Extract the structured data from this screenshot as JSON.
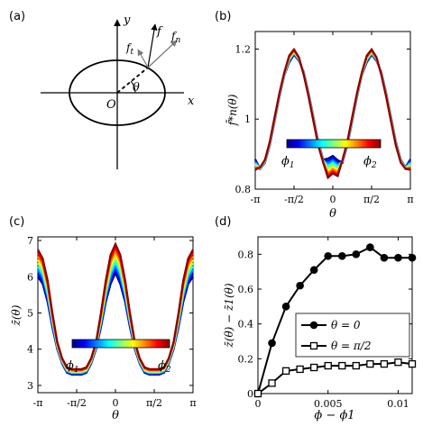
{
  "panel_labels": {
    "a": "(a)",
    "b": "(b)",
    "c": "(c)",
    "d": "(d)"
  },
  "diagram": {
    "y_label": "y",
    "x_label": "x",
    "origin_label": "O",
    "f_label": "f",
    "fn_label": "f",
    "fn_sub": "n",
    "ft_label": "f",
    "ft_sub": "t",
    "theta_label": "θ"
  },
  "colormap": {
    "stops": [
      "#00008b",
      "#0000ff",
      "#0080ff",
      "#00ffff",
      "#80ff80",
      "#ffff00",
      "#ff8000",
      "#ff0000",
      "#8b0000"
    ],
    "phi1": "ϕ",
    "phi1_sub": "1",
    "phi2": "ϕ",
    "phi2_sub": "2"
  },
  "chart_data": [
    {
      "id": "b",
      "type": "line",
      "xlabel": "θ",
      "ylabel": "f̄*n(θ)",
      "xlim": [
        -3.1416,
        3.1416
      ],
      "ylim": [
        0.8,
        1.25
      ],
      "xtick_labels": [
        "-π",
        "-π/2",
        "0",
        "π/2",
        "π"
      ],
      "xtick_values": [
        -3.1416,
        -1.5708,
        0,
        1.5708,
        3.1416
      ],
      "ytick_values": [
        0.8,
        1.0,
        1.2
      ],
      "ytick_labels": [
        "0.8",
        "1",
        "1.2"
      ],
      "x": [
        -3.1416,
        -2.9452,
        -2.7489,
        -2.5525,
        -2.3562,
        -2.1598,
        -1.9635,
        -1.7671,
        -1.5708,
        -1.3744,
        -1.1781,
        -0.9817,
        -0.7854,
        -0.589,
        -0.3927,
        -0.1963,
        0,
        0.1963,
        0.3927,
        0.589,
        0.7854,
        0.9817,
        1.1781,
        1.3744,
        1.5708,
        1.7671,
        1.9635,
        2.1598,
        2.3562,
        2.5525,
        2.7489,
        2.9452,
        3.1416
      ],
      "series_base": [
        0.87,
        0.86,
        0.88,
        0.93,
        1.0,
        1.07,
        1.13,
        1.17,
        1.19,
        1.17,
        1.13,
        1.07,
        1.0,
        0.93,
        0.88,
        0.86,
        0.87,
        0.86,
        0.88,
        0.93,
        1.0,
        1.07,
        1.13,
        1.17,
        1.19,
        1.17,
        1.13,
        1.07,
        1.0,
        0.93,
        0.88,
        0.86,
        0.87
      ],
      "series_count": 9
    },
    {
      "id": "c",
      "type": "line",
      "xlabel": "θ",
      "ylabel": "z̄(θ)",
      "xlim": [
        -3.1416,
        3.1416
      ],
      "ylim": [
        2.8,
        7.1
      ],
      "xtick_labels": [
        "-π",
        "-π/2",
        "0",
        "π/2",
        "π"
      ],
      "xtick_values": [
        -3.1416,
        -1.5708,
        0,
        1.5708,
        3.1416
      ],
      "ytick_values": [
        3,
        4,
        5,
        6,
        7
      ],
      "ytick_labels": [
        "3",
        "4",
        "5",
        "6",
        "7"
      ],
      "x": [
        -3.1416,
        -2.9452,
        -2.7489,
        -2.5525,
        -2.3562,
        -2.1598,
        -1.9635,
        -1.7671,
        -1.5708,
        -1.3744,
        -1.1781,
        -0.9817,
        -0.7854,
        -0.589,
        -0.3927,
        -0.1963,
        0,
        0.1963,
        0.3927,
        0.589,
        0.7854,
        0.9817,
        1.1781,
        1.3744,
        1.5708,
        1.7671,
        1.9635,
        2.1598,
        2.3562,
        2.5525,
        2.7489,
        2.9452,
        3.1416
      ],
      "series_low": [
        6.0,
        5.8,
        5.3,
        4.6,
        4.0,
        3.6,
        3.35,
        3.3,
        3.3,
        3.3,
        3.35,
        3.6,
        4.0,
        4.6,
        5.3,
        5.8,
        6.1,
        5.8,
        5.3,
        4.6,
        4.0,
        3.6,
        3.35,
        3.3,
        3.3,
        3.3,
        3.35,
        3.6,
        4.0,
        4.6,
        5.3,
        5.8,
        6.0
      ],
      "series_high": [
        6.75,
        6.5,
        5.9,
        5.0,
        4.2,
        3.75,
        3.5,
        3.45,
        3.45,
        3.45,
        3.5,
        3.75,
        4.2,
        5.0,
        5.9,
        6.6,
        6.9,
        6.6,
        5.9,
        5.0,
        4.2,
        3.75,
        3.5,
        3.45,
        3.45,
        3.45,
        3.5,
        3.75,
        4.2,
        5.0,
        5.9,
        6.5,
        6.75
      ],
      "series_count": 9
    },
    {
      "id": "d",
      "type": "line",
      "xlabel": "ϕ − ϕ1",
      "ylabel": "z̄(θ) − z̄1(θ)",
      "xlim": [
        0,
        0.011
      ],
      "ylim": [
        0,
        0.9
      ],
      "xtick_values": [
        0,
        0.005,
        0.01
      ],
      "xtick_labels": [
        "0",
        "0.005",
        "0.01"
      ],
      "ytick_values": [
        0,
        0.2,
        0.4,
        0.6,
        0.8
      ],
      "ytick_labels": [
        "0",
        "0.2",
        "0.4",
        "0.6",
        "0.8"
      ],
      "x": [
        0,
        0.001,
        0.002,
        0.003,
        0.004,
        0.005,
        0.006,
        0.007,
        0.008,
        0.009,
        0.01,
        0.011
      ],
      "series": [
        {
          "name": "θ = 0",
          "marker": "filled-circle",
          "values": [
            0,
            0.29,
            0.5,
            0.62,
            0.71,
            0.79,
            0.79,
            0.8,
            0.84,
            0.78,
            0.78,
            0.78
          ]
        },
        {
          "name": "θ = π/2",
          "marker": "open-square",
          "values": [
            0,
            0.06,
            0.13,
            0.14,
            0.15,
            0.16,
            0.16,
            0.16,
            0.17,
            0.17,
            0.18,
            0.17
          ]
        }
      ]
    }
  ]
}
